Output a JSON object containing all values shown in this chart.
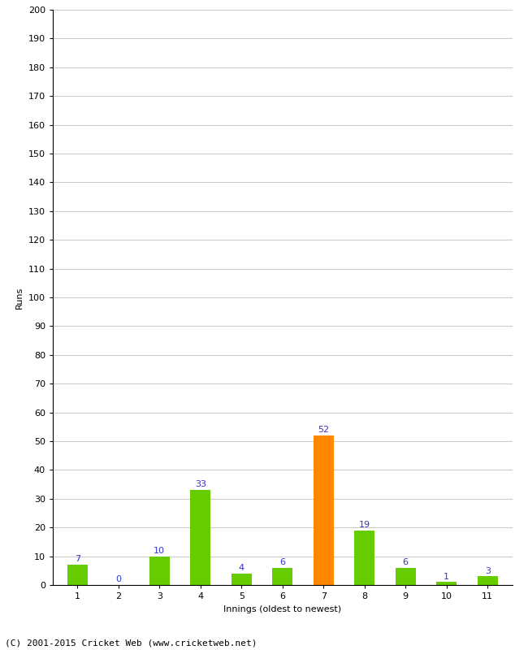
{
  "categories": [
    "1",
    "2",
    "3",
    "4",
    "5",
    "6",
    "7",
    "8",
    "9",
    "10",
    "11"
  ],
  "values": [
    7,
    0,
    10,
    33,
    4,
    6,
    52,
    19,
    6,
    1,
    3
  ],
  "bar_colors": [
    "#66cc00",
    "#66cc00",
    "#66cc00",
    "#66cc00",
    "#66cc00",
    "#66cc00",
    "#ff8800",
    "#66cc00",
    "#66cc00",
    "#66cc00",
    "#66cc00"
  ],
  "label_colors": [
    "#3333cc",
    "#3333cc",
    "#3333cc",
    "#3333cc",
    "#3333cc",
    "#3333cc",
    "#3333cc",
    "#3333cc",
    "#3333cc",
    "#3333cc",
    "#3333cc"
  ],
  "xlabel": "Innings (oldest to newest)",
  "ylabel": "Runs",
  "ylim": [
    0,
    200
  ],
  "yticks": [
    0,
    10,
    20,
    30,
    40,
    50,
    60,
    70,
    80,
    90,
    100,
    110,
    120,
    130,
    140,
    150,
    160,
    170,
    180,
    190,
    200
  ],
  "footer": "(C) 2001-2015 Cricket Web (www.cricketweb.net)",
  "background_color": "#ffffff",
  "grid_color": "#cccccc",
  "label_fontsize": 8,
  "axis_fontsize": 8,
  "ylabel_fontsize": 8,
  "footer_fontsize": 8
}
